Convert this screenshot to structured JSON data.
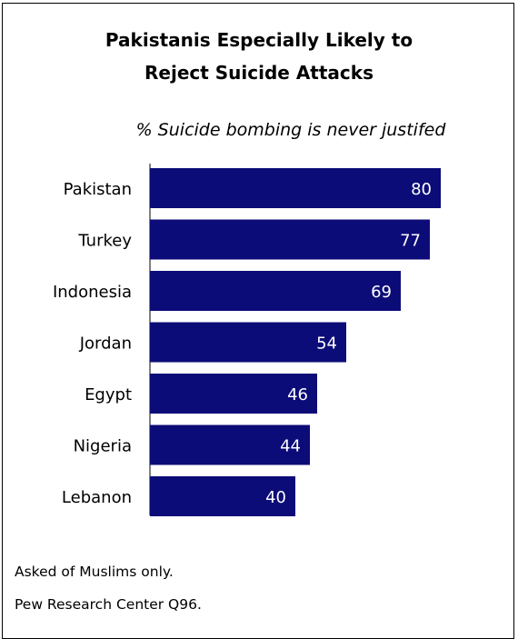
{
  "chart_data": {
    "type": "bar",
    "orientation": "horizontal",
    "title_lines": [
      "Pakistanis Especially Likely to",
      "Reject Suicide Attacks"
    ],
    "subtitle": "% Suicide bombing is never justifed",
    "categories": [
      "Pakistan",
      "Turkey",
      "Indonesia",
      "Jordan",
      "Egypt",
      "Nigeria",
      "Lebanon"
    ],
    "values": [
      80,
      77,
      69,
      54,
      46,
      44,
      40
    ],
    "value_labels": [
      "80",
      "77",
      "69",
      "54",
      "46",
      "44",
      "40"
    ],
    "xlim": [
      0,
      100
    ],
    "bar_color": "#0c0c78",
    "label_color": "#ffffff",
    "grid": false,
    "legend": "none"
  },
  "notes": [
    "Asked of Muslims only.",
    "Pew Research Center Q96."
  ]
}
